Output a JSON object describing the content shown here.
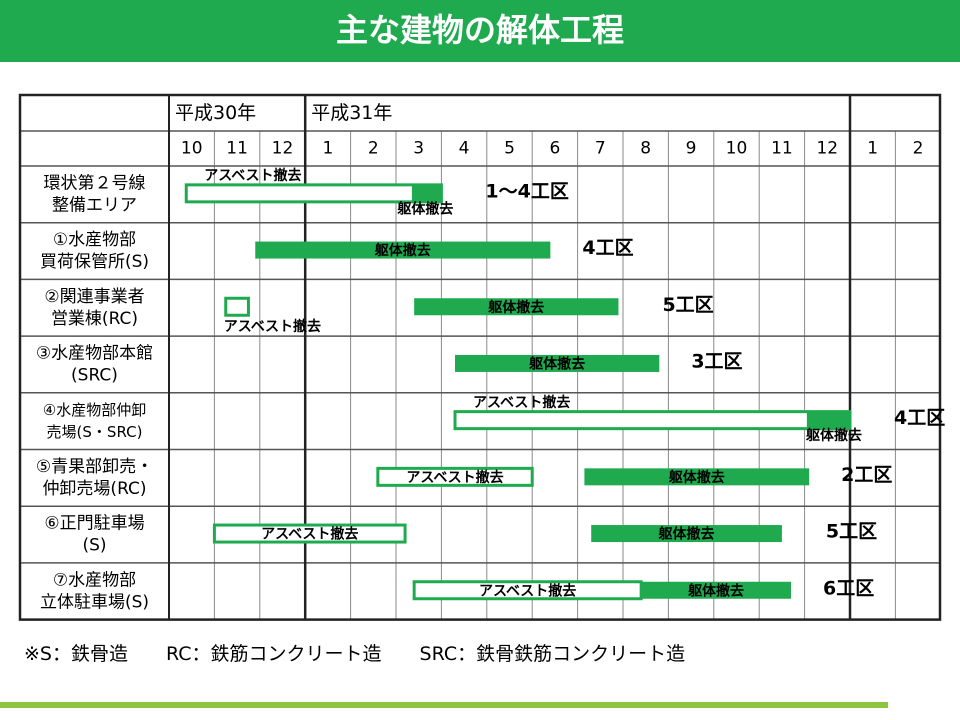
{
  "page": {
    "title": "主な建物の解体工程"
  },
  "chart_data": {
    "type": "gantt",
    "year_headers": [
      {
        "label": "平成30年",
        "start": 0,
        "end": 3
      },
      {
        "label": "平成31年",
        "start": 3,
        "end": 15
      }
    ],
    "months": [
      "10",
      "11",
      "12",
      "1",
      "2",
      "3",
      "4",
      "5",
      "6",
      "7",
      "8",
      "9",
      "10",
      "11",
      "12",
      "1",
      "2"
    ],
    "rows": [
      {
        "label": [
          "環状第２号線",
          "整備エリア"
        ],
        "small": false,
        "bars": [
          {
            "kind": "asbestos",
            "start": 0.38,
            "end": 6.0,
            "label": "アスベスト撤去",
            "label_pos": "above-left"
          },
          {
            "kind": "demolition",
            "start": 5.35,
            "end": 6.0,
            "label": "躯体撤去",
            "label_pos": "below-right"
          }
        ],
        "zone": "1～4工区"
      },
      {
        "label": [
          "①水産物部",
          "買荷保管所(S)"
        ],
        "small": false,
        "bars": [
          {
            "kind": "demolition",
            "start": 1.9,
            "end": 8.4,
            "label": "躯体撤去",
            "label_pos": "inside"
          }
        ],
        "zone": "4工区"
      },
      {
        "label": [
          "②関連事業者",
          "営業棟(RC)"
        ],
        "small": false,
        "bars": [
          {
            "kind": "asbestos",
            "start": 1.25,
            "end": 1.75,
            "label": "アスベスト撤去",
            "label_pos": "below-left"
          },
          {
            "kind": "demolition",
            "start": 5.4,
            "end": 9.9,
            "label": "躯体撤去",
            "label_pos": "inside"
          }
        ],
        "zone": "5工区"
      },
      {
        "label": [
          "③水産物部本館",
          "(SRC)"
        ],
        "small": false,
        "bars": [
          {
            "kind": "demolition",
            "start": 6.3,
            "end": 10.8,
            "label": "躯体撤去",
            "label_pos": "inside"
          }
        ],
        "zone": "3工区"
      },
      {
        "label": [
          "④水産物部仲卸",
          "売場(S・SRC)"
        ],
        "small": true,
        "bars": [
          {
            "kind": "asbestos",
            "start": 6.3,
            "end": 15.0,
            "label": "アスベスト撤去",
            "label_pos": "above-left"
          },
          {
            "kind": "demolition",
            "start": 14.05,
            "end": 15.0,
            "label": "躯体撤去",
            "label_pos": "below-right"
          }
        ],
        "zone": "4工区"
      },
      {
        "label": [
          "⑤青果部卸売・",
          "仲卸売場(RC)"
        ],
        "small": false,
        "bars": [
          {
            "kind": "asbestos",
            "start": 4.6,
            "end": 8.0,
            "label": "アスベスト撤去",
            "label_pos": "inside"
          },
          {
            "kind": "demolition",
            "start": 9.15,
            "end": 14.1,
            "label": "躯体撤去",
            "label_pos": "inside"
          }
        ],
        "zone": "2工区"
      },
      {
        "label": [
          "⑥正門駐車場",
          "(S)"
        ],
        "small": false,
        "bars": [
          {
            "kind": "asbestos",
            "start": 1.0,
            "end": 5.2,
            "label": "アスベスト撤去",
            "label_pos": "inside"
          },
          {
            "kind": "demolition",
            "start": 9.3,
            "end": 13.5,
            "label": "躯体撤去",
            "label_pos": "inside"
          }
        ],
        "zone": "5工区"
      },
      {
        "label": [
          "⑦水産物部",
          "立体駐車場(S)"
        ],
        "small": false,
        "bars": [
          {
            "kind": "asbestos",
            "start": 5.4,
            "end": 10.4,
            "label": "アスベスト撤去",
            "label_pos": "inside"
          },
          {
            "kind": "demolition",
            "start": 10.4,
            "end": 13.7,
            "label": "躯体撤去",
            "label_pos": "inside"
          }
        ],
        "zone": "6工区"
      }
    ],
    "colors": {
      "bar": "#1faa4f",
      "grid": "#555555",
      "grid_light": "#8a8a8a"
    }
  },
  "footnote": "※S：鉄骨造　　RC：鉄筋コンクリート造　　SRC：鉄骨鉄筋コンクリート造"
}
